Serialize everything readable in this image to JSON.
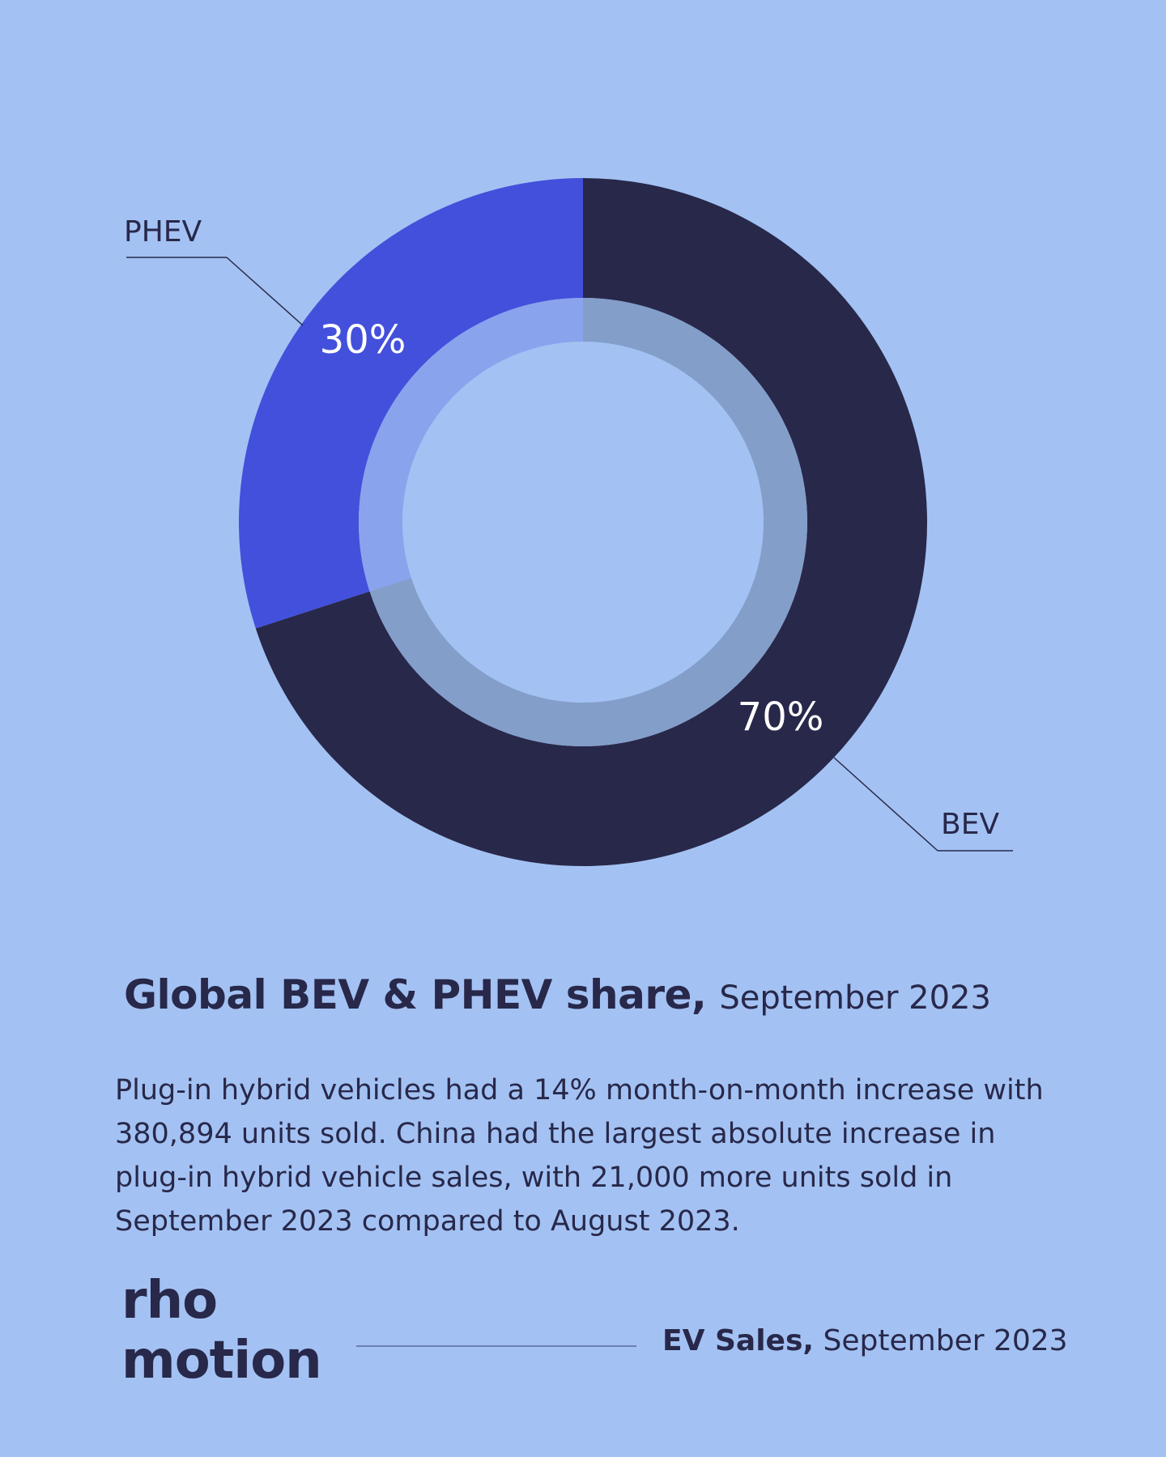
{
  "chart_data": {
    "type": "pie",
    "style": "donut",
    "title": "Global BEV & PHEV share,",
    "subtitle": "September 2023",
    "slices": [
      {
        "name": "BEV",
        "value": 70,
        "label": "70%",
        "color": "#28284a"
      },
      {
        "name": "PHEV",
        "value": 30,
        "label": "30%",
        "color": "#4350db"
      }
    ]
  },
  "description": "Plug-in hybrid vehicles had a 14% month-on-month increase with 380,894 units sold. China had the largest absolute increase in plug-in hybrid vehicle sales, with 21,000 more units sold in September 2023 compared to August 2023.",
  "logo": {
    "line1": "rho",
    "line2": "motion"
  },
  "footer": {
    "bold": "EV Sales,",
    "light": "September 2023"
  },
  "colors": {
    "background": "#a3c2f3",
    "text": "#28284a",
    "bev": "#28284a",
    "phev": "#4350db"
  }
}
